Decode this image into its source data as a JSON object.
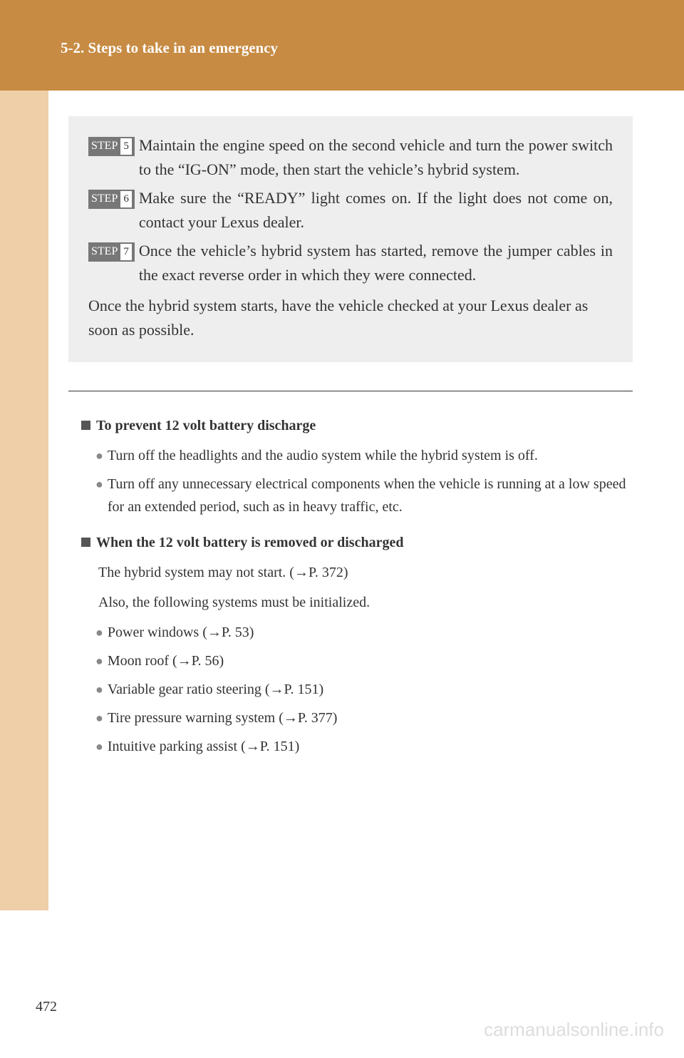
{
  "header": {
    "title": "5-2. Steps to take in an emergency"
  },
  "steps": [
    {
      "label": "STEP",
      "num": "5",
      "text": "Maintain the engine speed on the second vehicle and turn the power switch to the “IG-ON” mode, then start the vehicle’s hybrid system."
    },
    {
      "label": "STEP",
      "num": "6",
      "text": "Make sure the “READY” light comes on. If the light does not come on, contact your Lexus dealer."
    },
    {
      "label": "STEP",
      "num": "7",
      "text": "Once the vehicle’s hybrid system has started, remove the jumper cables in the exact reverse order in which they were connected."
    }
  ],
  "closing": "Once the hybrid system starts, have the vehicle checked at your Lexus dealer as soon as possible.",
  "sections": [
    {
      "heading": "To prevent 12 volt battery discharge",
      "bullets": [
        "Turn off the headlights and the audio system while the hybrid system is off.",
        "Turn off any unnecessary electrical components when the vehicle is running at a low speed for an extended period, such as in heavy traffic, etc."
      ]
    },
    {
      "heading": "When the 12 volt battery is removed or discharged",
      "texts": [
        "The hybrid system may not start. (→P. 372)",
        "Also, the following systems must be initialized."
      ],
      "bullets": [
        "Power windows (→P. 53)",
        "Moon roof (→P. 56)",
        "Variable gear ratio steering (→P. 151)",
        "Tire pressure warning system (→P. 377)",
        "Intuitive parking assist (→P. 151)"
      ]
    }
  ],
  "pageNumber": "472",
  "watermark": "carmanualsonline.info"
}
